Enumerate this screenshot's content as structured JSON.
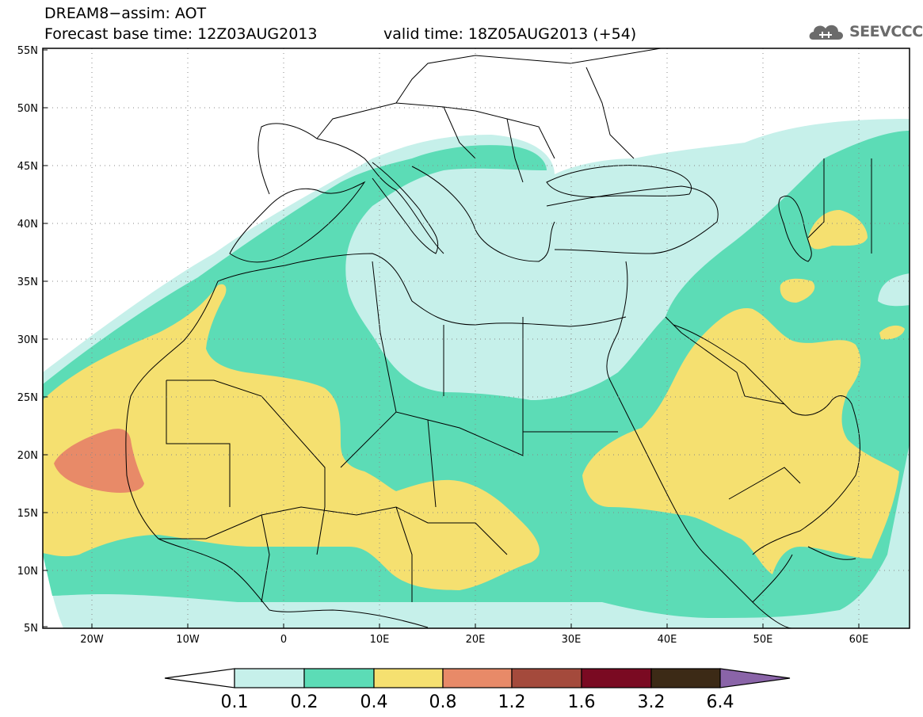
{
  "title_line1": "DREAM8−assim: AOT",
  "title_line2": "Forecast base time: 12Z03AUG2013",
  "valid_time": "valid time: 18Z05AUG2013 (+54)",
  "logo_text": "SEEVCCC",
  "lat_labels": [
    "55N",
    "50N",
    "45N",
    "40N",
    "35N",
    "30N",
    "25N",
    "20N",
    "15N",
    "10N",
    "5N"
  ],
  "lon_labels": [
    "20W",
    "10W",
    "0",
    "10E",
    "20E",
    "30E",
    "40E",
    "50E",
    "60E"
  ],
  "colorbar": {
    "labels": [
      "0.1",
      "0.2",
      "0.4",
      "0.8",
      "1.2",
      "1.6",
      "3.2",
      "6.4"
    ],
    "colors": [
      "#ffffff",
      "#c6f0ea",
      "#5cdcb6",
      "#f5e070",
      "#e88a68",
      "#a44a3c",
      "#7a0a22",
      "#3c2a16",
      "#8a64a8"
    ]
  },
  "colors": {
    "level_0_1": "#c6f0ea",
    "level_0_2": "#5cdcb6",
    "level_0_4": "#f5e070",
    "level_0_8": "#e88a68"
  }
}
